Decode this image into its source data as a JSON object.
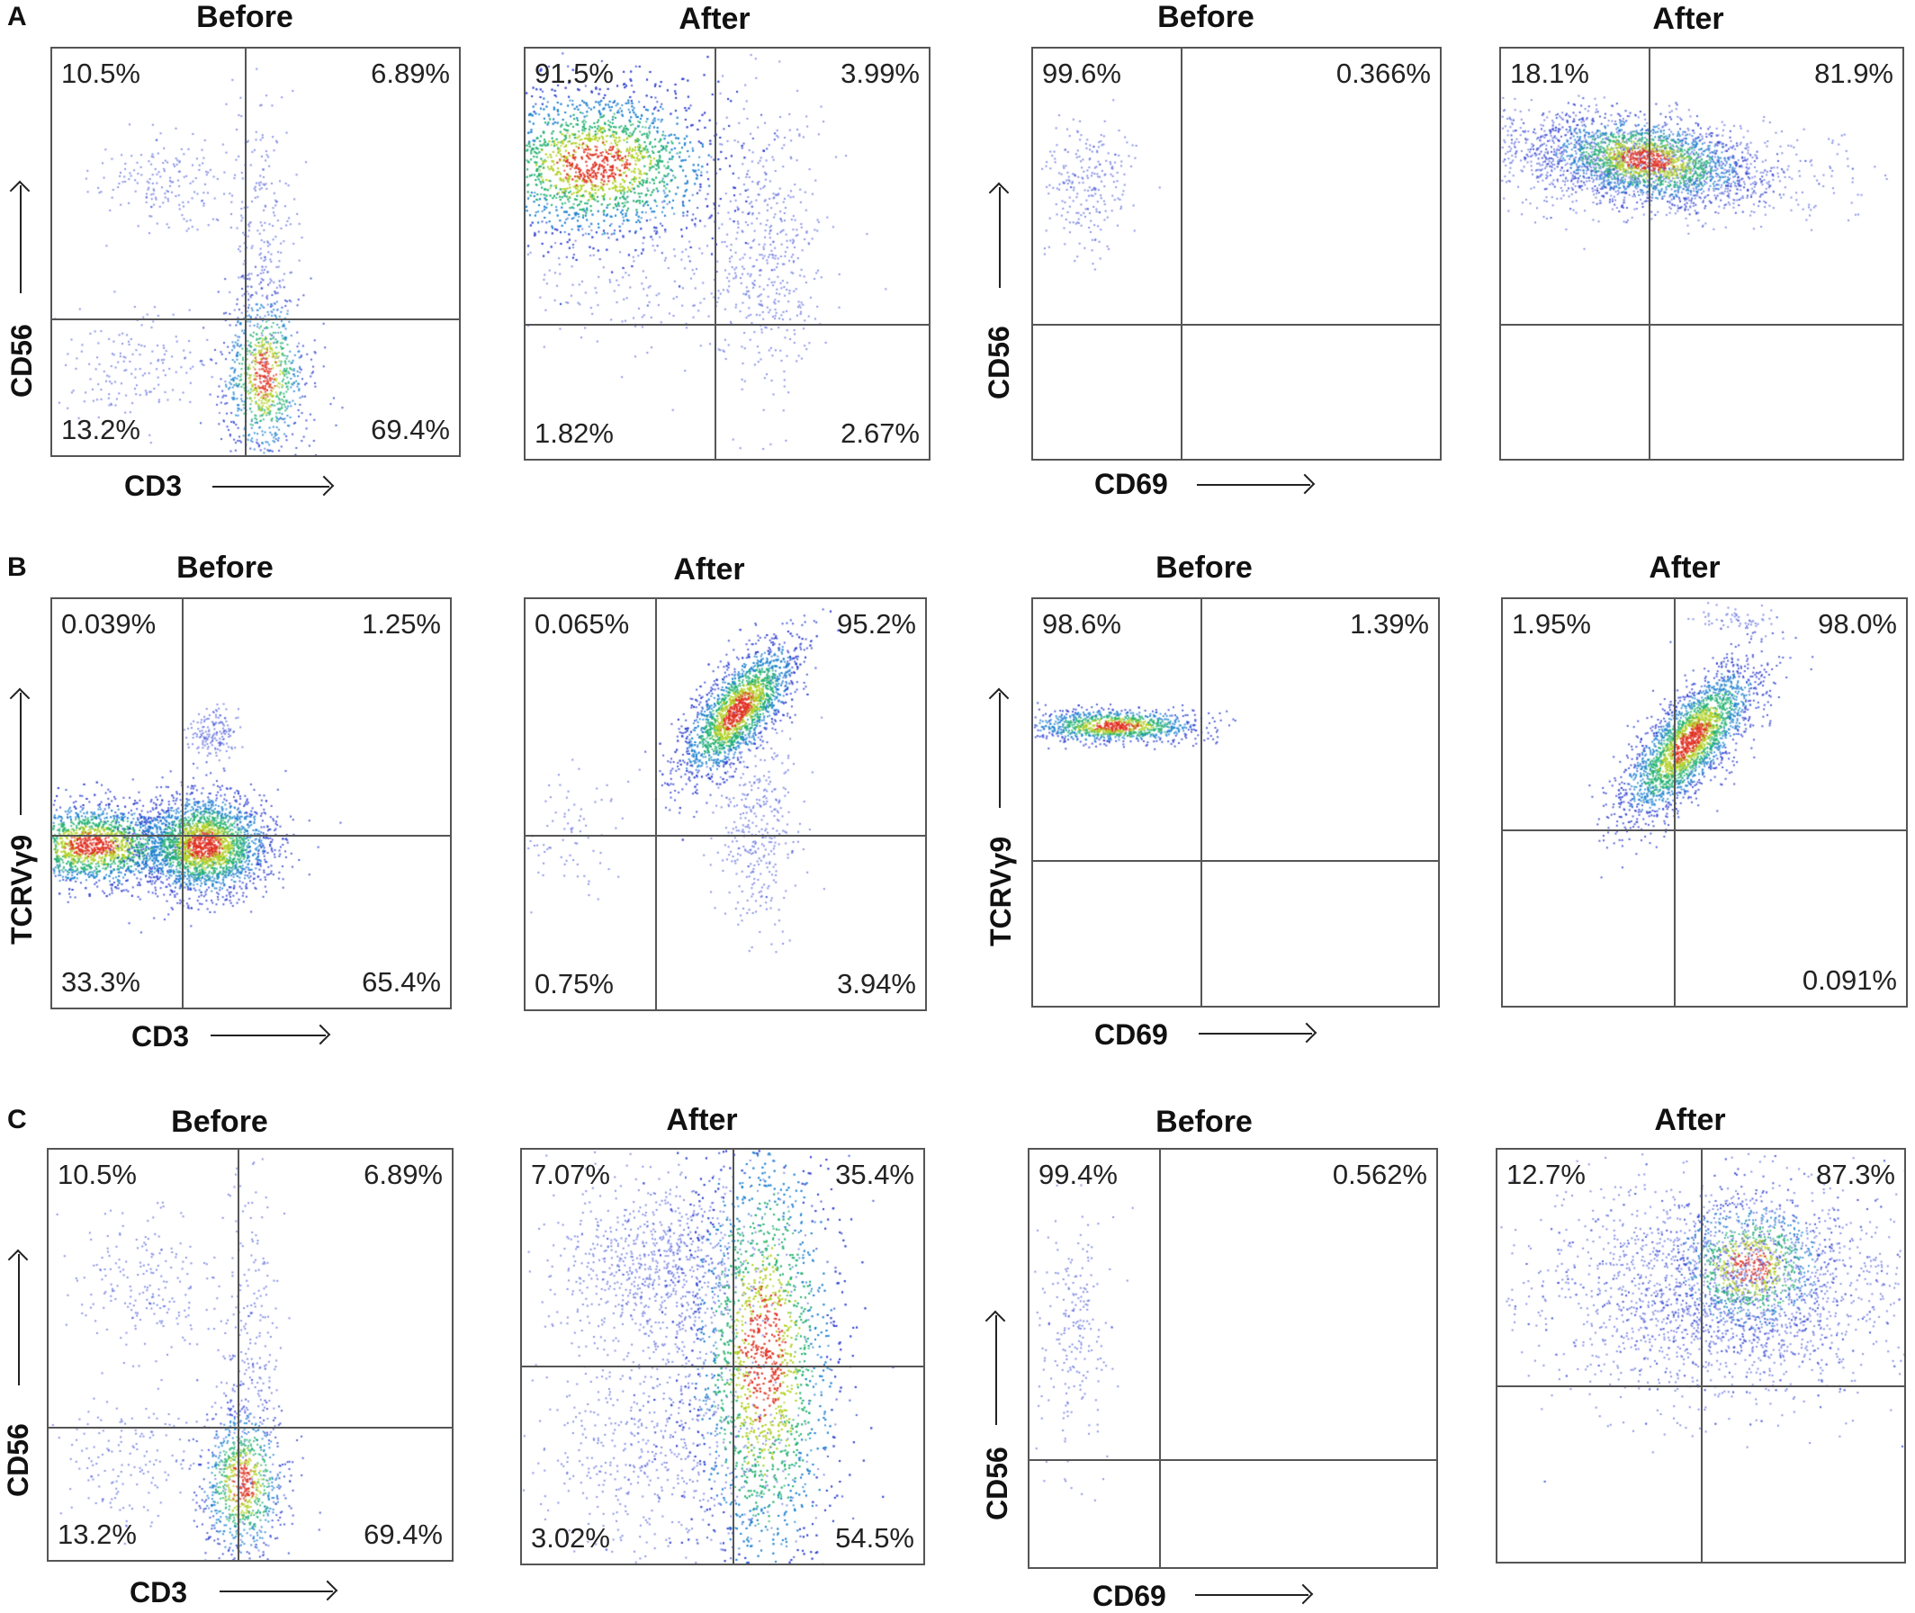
{
  "rows": [
    {
      "letter": "A",
      "panels": [
        {
          "title": "Before",
          "q": {
            "ul": "10.5%",
            "ur": "6.89%",
            "ll": "13.2%",
            "lr": "69.4%"
          }
        },
        {
          "title": "After",
          "q": {
            "ul": "91.5%",
            "ur": "3.99%",
            "ll": "1.82%",
            "lr": "2.67%"
          }
        },
        {
          "title": "Before",
          "q": {
            "ul": "99.6%",
            "ur": "0.366%",
            "ll": "",
            "lr": ""
          }
        },
        {
          "title": "After",
          "q": {
            "ul": "18.1%",
            "ur": "81.9%",
            "ll": "",
            "lr": ""
          }
        }
      ],
      "axis_left": {
        "x": "CD3",
        "y": "CD56"
      },
      "axis_right": {
        "x": "CD69",
        "y": "CD56"
      }
    },
    {
      "letter": "B",
      "panels": [
        {
          "title": "Before",
          "q": {
            "ul": "0.039%",
            "ur": "1.25%",
            "ll": "33.3%",
            "lr": "65.4%"
          }
        },
        {
          "title": "After",
          "q": {
            "ul": "0.065%",
            "ur": "95.2%",
            "ll": "0.75%",
            "lr": "3.94%"
          }
        },
        {
          "title": "Before",
          "q": {
            "ul": "98.6%",
            "ur": "1.39%",
            "ll": "",
            "lr": ""
          }
        },
        {
          "title": "After",
          "q": {
            "ul": "1.95%",
            "ur": "98.0%",
            "ll": "",
            "lr": "0.091%"
          }
        }
      ],
      "axis_left": {
        "x": "CD3",
        "y": "TCRVγ9"
      },
      "axis_right": {
        "x": "CD69",
        "y": "TCRVγ9"
      }
    },
    {
      "letter": "C",
      "panels": [
        {
          "title": "Before",
          "q": {
            "ul": "10.5%",
            "ur": "6.89%",
            "ll": "13.2%",
            "lr": "69.4%"
          }
        },
        {
          "title": "After",
          "q": {
            "ul": "7.07%",
            "ur": "35.4%",
            "ll": "3.02%",
            "lr": "54.5%"
          }
        },
        {
          "title": "Before",
          "q": {
            "ul": "99.4%",
            "ur": "0.562%",
            "ll": "",
            "lr": ""
          }
        },
        {
          "title": "After",
          "q": {
            "ul": "12.7%",
            "ur": "87.3%",
            "ll": "",
            "lr": ""
          }
        }
      ],
      "axis_left": {
        "x": "CD3",
        "y": "CD56"
      },
      "axis_right": {
        "x": "CD69",
        "y": "CD56"
      }
    }
  ],
  "colors": {
    "sparse": "#3040d0",
    "dense": "#20c060",
    "peak": "#e03020",
    "gate": "#555555"
  }
}
